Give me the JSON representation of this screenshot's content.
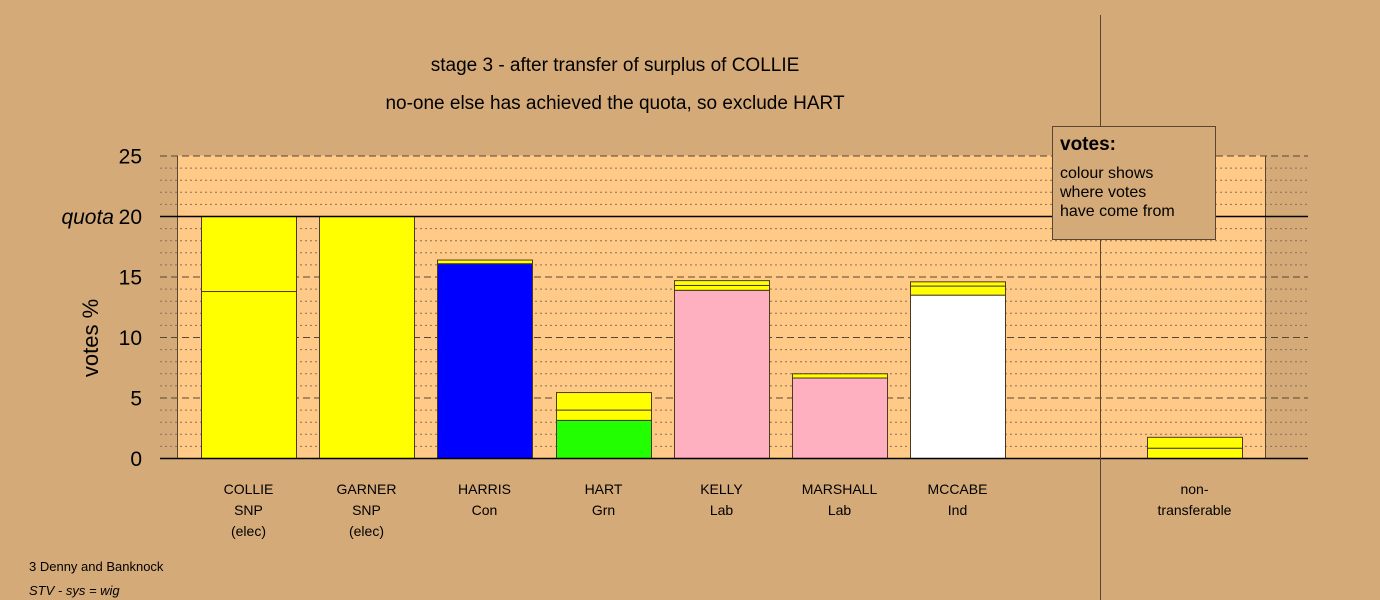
{
  "titles": {
    "line1": "stage 3 - after transfer of surplus of COLLIE",
    "line2": "no-one else has achieved the quota, so exclude HART"
  },
  "legend": {
    "heading": "votes:",
    "lines": [
      "colour shows",
      "where votes",
      "have come from"
    ]
  },
  "footer": {
    "ward": "3 Denny and Banknock",
    "system": "STV - sys = wig"
  },
  "chart_data": {
    "type": "bar",
    "stacked": true,
    "title": "stage 3 - after transfer of surplus of COLLIE",
    "ylabel": "votes %",
    "ylim": [
      0,
      25
    ],
    "yticks": [
      0,
      5,
      10,
      15,
      20,
      25
    ],
    "quota": 20,
    "quota_label": "quota",
    "grid": true,
    "legend_placement": "top-right",
    "categories": [
      {
        "lines": [
          "COLLIE",
          "SNP",
          "(elec)"
        ],
        "segments": [
          {
            "value": 13.8,
            "color": "#FFFF00"
          },
          {
            "value": 6.2,
            "color": "#FFFF00"
          }
        ]
      },
      {
        "lines": [
          "GARNER",
          "SNP",
          "(elec)"
        ],
        "segments": [
          {
            "value": 20.0,
            "color": "#FFFF00"
          }
        ]
      },
      {
        "lines": [
          "HARRIS",
          "Con"
        ],
        "segments": [
          {
            "value": 16.1,
            "color": "#0000FF"
          },
          {
            "value": 0.3,
            "color": "#FFFF00"
          }
        ]
      },
      {
        "lines": [
          "HART",
          "Grn"
        ],
        "segments": [
          {
            "value": 3.15,
            "color": "#22FF00"
          },
          {
            "value": 0.85,
            "color": "#FFFF00"
          },
          {
            "value": 1.45,
            "color": "#FFFF00"
          }
        ]
      },
      {
        "lines": [
          "KELLY",
          "Lab"
        ],
        "segments": [
          {
            "value": 13.9,
            "color": "#FFB0C0"
          },
          {
            "value": 0.4,
            "color": "#FFFF00"
          },
          {
            "value": 0.4,
            "color": "#FFFF00"
          }
        ]
      },
      {
        "lines": [
          "MARSHALL",
          "Lab"
        ],
        "segments": [
          {
            "value": 6.65,
            "color": "#FFB0C0"
          },
          {
            "value": 0.35,
            "color": "#FFFF00"
          }
        ]
      },
      {
        "lines": [
          "MCCABE",
          "Ind"
        ],
        "segments": [
          {
            "value": 13.5,
            "color": "#FFFFFF"
          },
          {
            "value": 0.75,
            "color": "#FFFF00"
          },
          {
            "value": 0.35,
            "color": "#FFFF00"
          }
        ]
      },
      {
        "lines": [
          "non-",
          "transferable"
        ],
        "segments": [
          {
            "value": 0.85,
            "color": "#FFFF00"
          },
          {
            "value": 0.9,
            "color": "#FFFF00"
          }
        ]
      }
    ]
  }
}
